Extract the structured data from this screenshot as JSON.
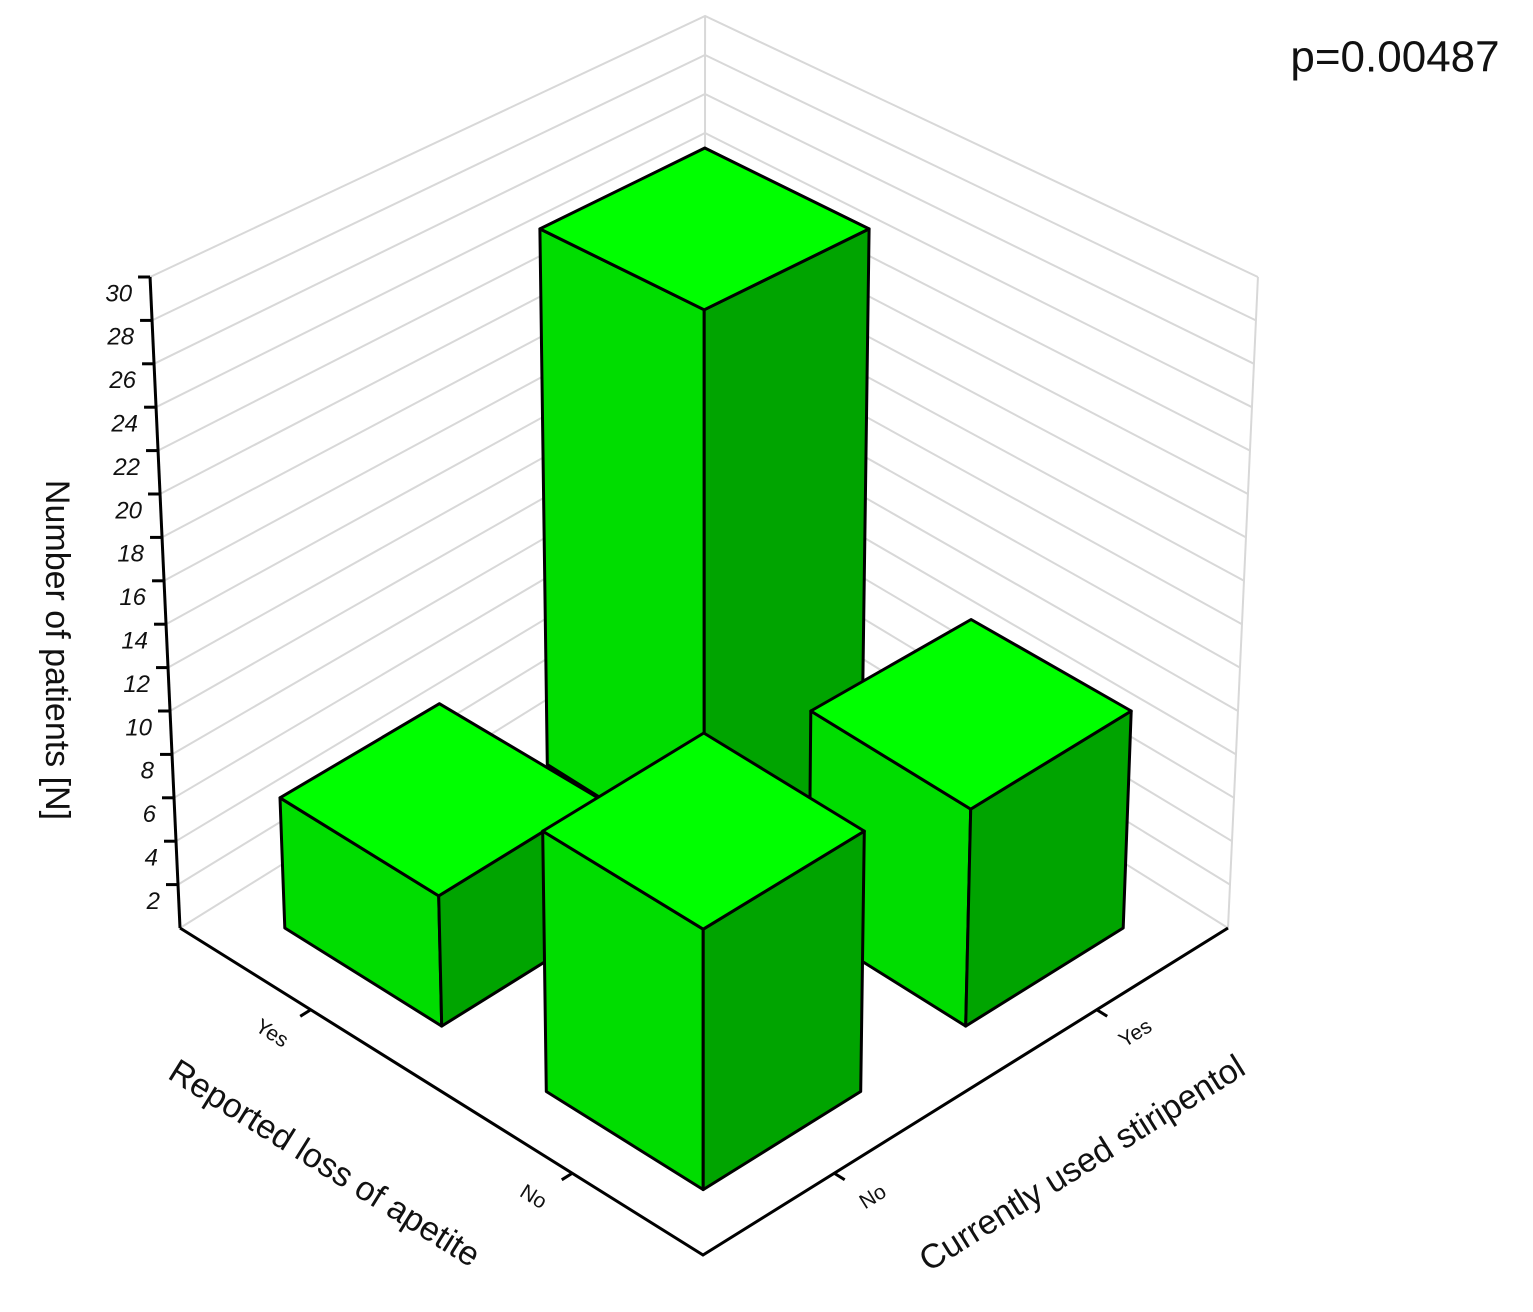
{
  "chart_data": {
    "type": "bar3d",
    "annotation": "p=0.00487",
    "y_label": "Number of patients [N]",
    "x_label": "Reported loss of apetite",
    "z_label": "Currently used stiripentol",
    "x_categories": [
      "Yes",
      "No"
    ],
    "z_categories": [
      "No",
      "Yes"
    ],
    "values": [
      [
        6,
        26
      ],
      [
        12,
        10
      ]
    ],
    "ylim": [
      0,
      30
    ],
    "yticks": [
      2,
      4,
      6,
      8,
      10,
      12,
      14,
      16,
      18,
      20,
      22,
      24,
      26,
      28,
      30
    ],
    "grid": true,
    "colors": {
      "top": "#00ff00",
      "left": "#00dd00",
      "right": "#00a400"
    }
  }
}
